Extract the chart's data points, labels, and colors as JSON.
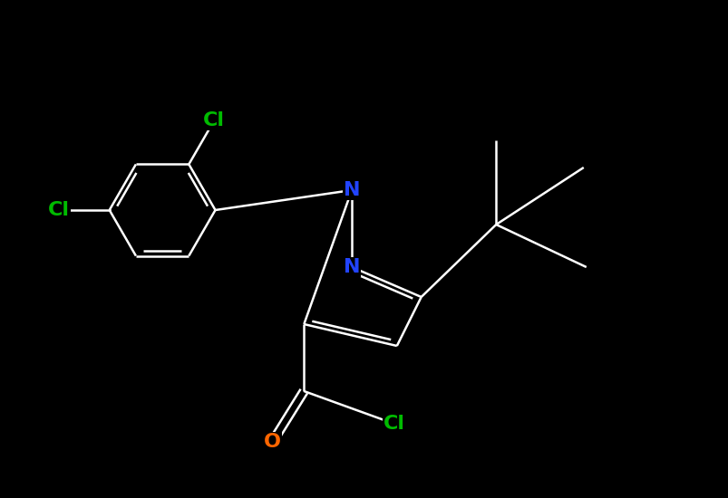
{
  "background_color": "#000000",
  "atom_colors": {
    "C": "#ffffff",
    "N": "#2244ff",
    "O": "#ff6600",
    "Cl": "#00bb00"
  },
  "bond_color": "#ffffff",
  "bond_width": 1.8,
  "font_size": 16,
  "fig_width": 8.04,
  "fig_height": 5.5,
  "dpi": 100
}
